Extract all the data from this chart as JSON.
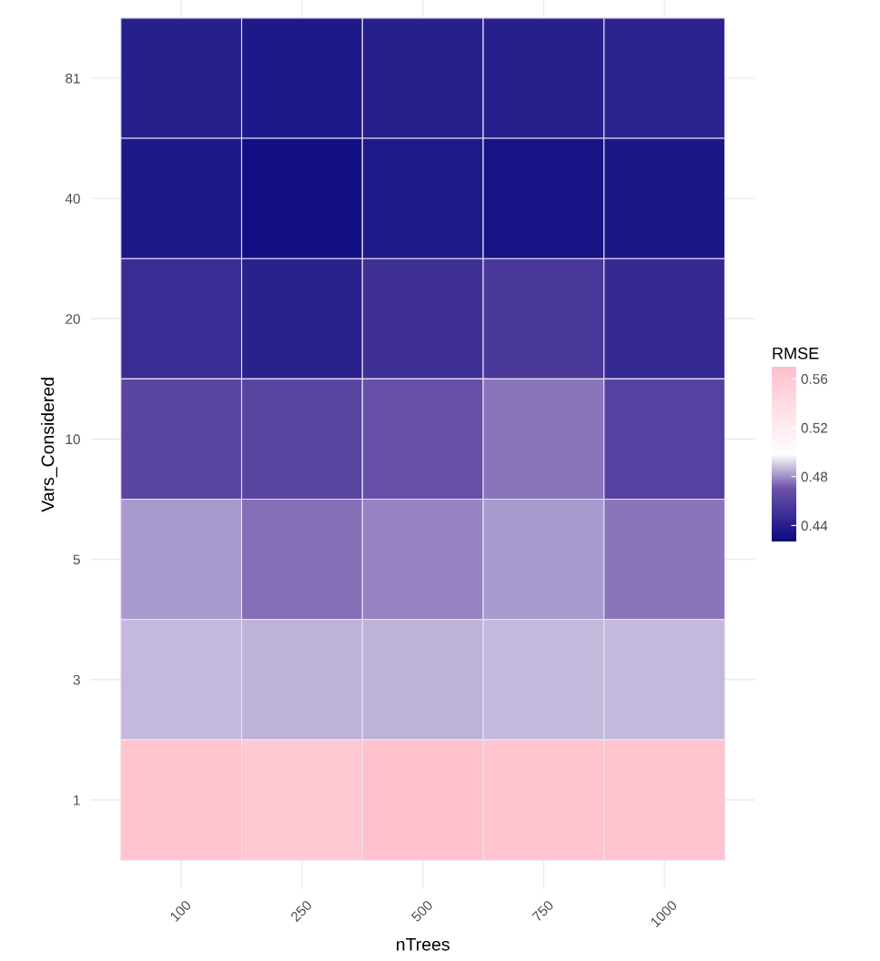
{
  "chart_data": {
    "type": "heatmap",
    "xlabel": "nTrees",
    "ylabel": "Vars_Considered",
    "clabel": "RMSE",
    "categories": [
      "100",
      "250",
      "500",
      "750",
      "1000"
    ],
    "y_categories": [
      "81",
      "40",
      "20",
      "10",
      "5",
      "3",
      "1"
    ],
    "cells": [
      [
        0.44,
        0.436,
        0.44,
        0.44,
        0.442
      ],
      [
        0.436,
        0.431,
        0.437,
        0.433,
        0.435
      ],
      [
        0.448,
        0.441,
        0.45,
        0.455,
        0.446
      ],
      [
        0.462,
        0.462,
        0.468,
        0.476,
        0.46
      ],
      [
        0.482,
        0.475,
        0.478,
        0.482,
        0.476
      ],
      [
        0.487,
        0.486,
        0.486,
        0.487,
        0.487
      ],
      [
        0.565,
        0.56,
        0.568,
        0.565,
        0.565
      ]
    ],
    "clim": [
      0.427,
      0.57
    ],
    "cticks": [
      0.44,
      0.48,
      0.52,
      0.56
    ],
    "grid": true
  }
}
